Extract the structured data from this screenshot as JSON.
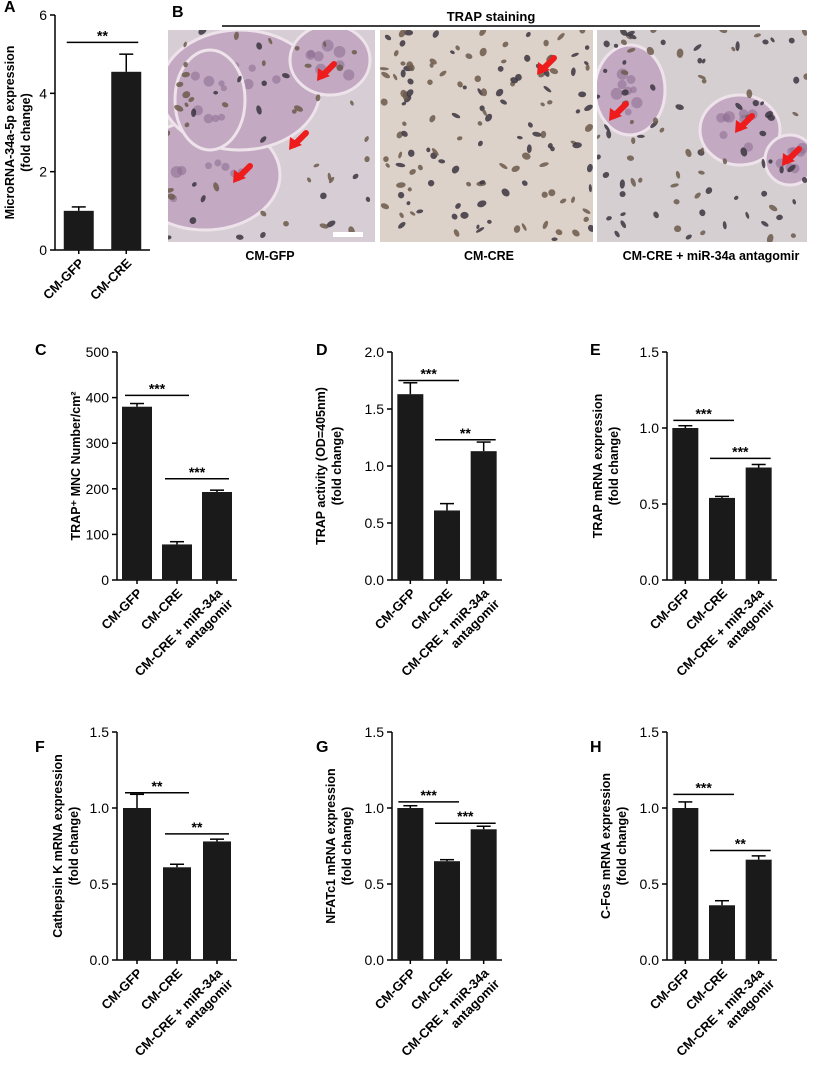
{
  "panel_b": {
    "letter": "B",
    "header": "TRAP staining",
    "image_captions": [
      "CM-GFP",
      "CM-CRE",
      "CM-CRE + miR-34a antagomir"
    ]
  },
  "chart_data": [
    {
      "panel": "A",
      "type": "bar",
      "categories": [
        "CM-GFP",
        "CM-CRE"
      ],
      "values": [
        1.0,
        4.55
      ],
      "errors": [
        0.1,
        0.45
      ],
      "ylabel_lines": [
        "MicroRNA-34a-5p expression",
        "(fold change)"
      ],
      "ylim": [
        0,
        6
      ],
      "yticks": [
        0,
        2,
        4,
        6
      ],
      "tick_decimals": 0,
      "significance": [
        {
          "from": 0,
          "to": 1,
          "label": "**",
          "y": 5.3
        }
      ]
    },
    {
      "panel": "C",
      "type": "bar",
      "categories": [
        "CM-GFP",
        "CM-CRE",
        "CM-CRE + miR-34a antagomir"
      ],
      "values": [
        380,
        78,
        193
      ],
      "errors": [
        7,
        6,
        4
      ],
      "ylabel_lines": [
        "TRAP⁺ MNC Number/cm²"
      ],
      "ylim": [
        0,
        500
      ],
      "yticks": [
        0,
        100,
        200,
        300,
        400,
        500
      ],
      "tick_decimals": 0,
      "significance": [
        {
          "from": 0,
          "to": 1,
          "label": "***",
          "y": 405
        },
        {
          "from": 1,
          "to": 2,
          "label": "***",
          "y": 222
        }
      ]
    },
    {
      "panel": "D",
      "type": "bar",
      "categories": [
        "CM-GFP",
        "CM-CRE",
        "CM-CRE + miR-34a antagomir"
      ],
      "values": [
        1.63,
        0.61,
        1.13
      ],
      "errors": [
        0.1,
        0.06,
        0.08
      ],
      "ylabel_lines": [
        "TRAP activity (OD=405nm)",
        "(fold change)"
      ],
      "ylim": [
        0,
        2.0
      ],
      "yticks": [
        0,
        0.5,
        1.0,
        1.5,
        2.0
      ],
      "tick_decimals": 1,
      "significance": [
        {
          "from": 0,
          "to": 1,
          "label": "***",
          "y": 1.75
        },
        {
          "from": 1,
          "to": 2,
          "label": "**",
          "y": 1.23
        }
      ]
    },
    {
      "panel": "E",
      "type": "bar",
      "categories": [
        "CM-GFP",
        "CM-CRE",
        "CM-CRE + miR-34a antagomir"
      ],
      "values": [
        1.0,
        0.54,
        0.74
      ],
      "errors": [
        0.015,
        0.01,
        0.02
      ],
      "ylabel_lines": [
        "TRAP mRNA expression",
        "(fold change)"
      ],
      "ylim": [
        0,
        1.5
      ],
      "yticks": [
        0,
        0.5,
        1.0,
        1.5
      ],
      "tick_decimals": 1,
      "significance": [
        {
          "from": 0,
          "to": 1,
          "label": "***",
          "y": 1.05
        },
        {
          "from": 1,
          "to": 2,
          "label": "***",
          "y": 0.8
        }
      ]
    },
    {
      "panel": "F",
      "type": "bar",
      "categories": [
        "CM-GFP",
        "CM-CRE",
        "CM-CRE + miR-34a antagomir"
      ],
      "values": [
        1.0,
        0.61,
        0.78
      ],
      "errors": [
        0.09,
        0.02,
        0.015
      ],
      "ylabel_lines": [
        "Cathepsin K mRNA expression",
        "(fold change)"
      ],
      "ylim": [
        0,
        1.5
      ],
      "yticks": [
        0,
        0.5,
        1.0,
        1.5
      ],
      "tick_decimals": 1,
      "significance": [
        {
          "from": 0,
          "to": 1,
          "label": "**",
          "y": 1.1
        },
        {
          "from": 1,
          "to": 2,
          "label": "**",
          "y": 0.83
        }
      ]
    },
    {
      "panel": "G",
      "type": "bar",
      "categories": [
        "CM-GFP",
        "CM-CRE",
        "CM-CRE + miR-34a antagomir"
      ],
      "values": [
        1.0,
        0.65,
        0.86
      ],
      "errors": [
        0.015,
        0.01,
        0.02
      ],
      "ylabel_lines": [
        "NFATc1 mRNA expression",
        "(fold change)"
      ],
      "ylim": [
        0,
        1.5
      ],
      "yticks": [
        0,
        0.5,
        1.0,
        1.5
      ],
      "tick_decimals": 1,
      "significance": [
        {
          "from": 0,
          "to": 1,
          "label": "***",
          "y": 1.04
        },
        {
          "from": 1,
          "to": 2,
          "label": "***",
          "y": 0.9
        }
      ]
    },
    {
      "panel": "H",
      "type": "bar",
      "categories": [
        "CM-GFP",
        "CM-CRE",
        "CM-CRE + miR-34a antagomir"
      ],
      "values": [
        1.0,
        0.36,
        0.66
      ],
      "errors": [
        0.04,
        0.03,
        0.025
      ],
      "ylabel_lines": [
        "C-Fos mRNA expression",
        "(fold change)"
      ],
      "ylim": [
        0,
        1.5
      ],
      "yticks": [
        0,
        0.5,
        1.0,
        1.5
      ],
      "tick_decimals": 1,
      "significance": [
        {
          "from": 0,
          "to": 1,
          "label": "***",
          "y": 1.09
        },
        {
          "from": 1,
          "to": 2,
          "label": "**",
          "y": 0.72
        }
      ]
    }
  ]
}
